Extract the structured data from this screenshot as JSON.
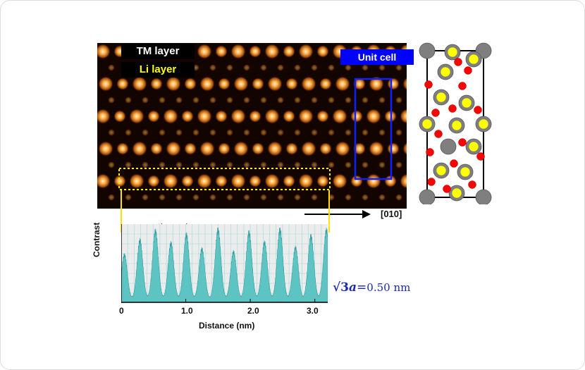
{
  "stem_image": {
    "tm_label": "TM layer",
    "li_label": "Li layer",
    "unit_cell_label": "Unit cell",
    "direction_label": "[010]"
  },
  "line_profile": {
    "spacing_label": "0.50 nm",
    "ylabel": "Contrast",
    "xlabel": "Distance (nm)",
    "x_ticks": [
      "0",
      "1.0",
      "2.0",
      "3.0"
    ],
    "formula": {
      "prefix": "√3",
      "symbol": "a",
      "equals": "=",
      "value": "0.50 nm"
    }
  },
  "chart_data": {
    "type": "area",
    "xlabel": "Distance (nm)",
    "ylabel": "Contrast",
    "xlim": [
      0,
      3.2
    ],
    "ylim": [
      0,
      1
    ],
    "x_ticks": [
      0,
      1.0,
      2.0,
      3.0
    ],
    "peaks_x": [
      0.05,
      0.29,
      0.53,
      0.77,
      1.01,
      1.25,
      1.5,
      1.74,
      1.98,
      2.22,
      2.46,
      2.7,
      2.94,
      3.18
    ],
    "peaks_y": [
      0.62,
      0.82,
      0.95,
      0.78,
      0.9,
      0.7,
      0.97,
      0.66,
      0.93,
      0.79,
      0.97,
      0.72,
      0.88,
      0.96
    ],
    "annotation": "0.50 nm"
  },
  "colors": {
    "atom": "#ff9a3a",
    "profile_fill": "#5ec3c3",
    "unit_cell_box": "#0000ff",
    "highlight": "#ffee00",
    "formula": "#1a2aa8"
  },
  "crystal_structure": {
    "atom_colors": [
      "#7f7f7f",
      "#ffff00",
      "#ff0000"
    ]
  }
}
